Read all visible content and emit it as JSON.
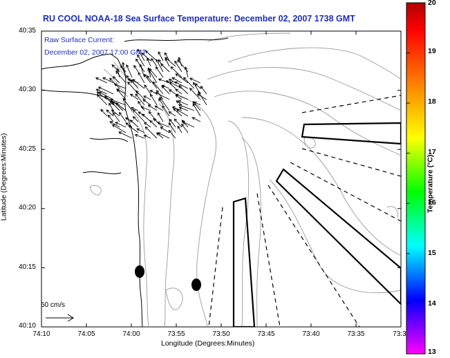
{
  "title": "RU COOL  NOAA-18  Sea Surface Temperature:  December 02, 2007 1738 GMT",
  "subtitle_line1": "Raw Surface Current:",
  "subtitle_line2": "December 02, 2007 17:00 GMT",
  "xlabel": "Longitude (Degrees:Minutes)",
  "ylabel": "Latitude (Degrees:Minutes)",
  "x_ticks": [
    "74:10",
    "74:05",
    "74:00",
    "73:55",
    "73:50",
    "73:45",
    "73:40",
    "73:35",
    "73:3"
  ],
  "y_ticks": [
    "40:35",
    "40:30",
    "40:25",
    "40:20",
    "40:15",
    "40:10"
  ],
  "colorbar": {
    "label": "Temperature (°C)",
    "ticks": [
      "20",
      "19",
      "18",
      "17",
      "16",
      "15",
      "14",
      "13"
    ],
    "range": [
      13,
      20
    ],
    "colors": [
      "#ff00ff",
      "#7f00ff",
      "#0000ff",
      "#0080ff",
      "#00ffff",
      "#00ff80",
      "#00ff00",
      "#80ff00",
      "#ffff00",
      "#ffbf00",
      "#ff8000",
      "#ff4000",
      "#ff0000",
      "#b00000"
    ]
  },
  "scale_label": "50 cm/s",
  "colors": {
    "title": "#1f2fb8",
    "bathymetry": "#9a9a9a",
    "coast": "#000000"
  }
}
